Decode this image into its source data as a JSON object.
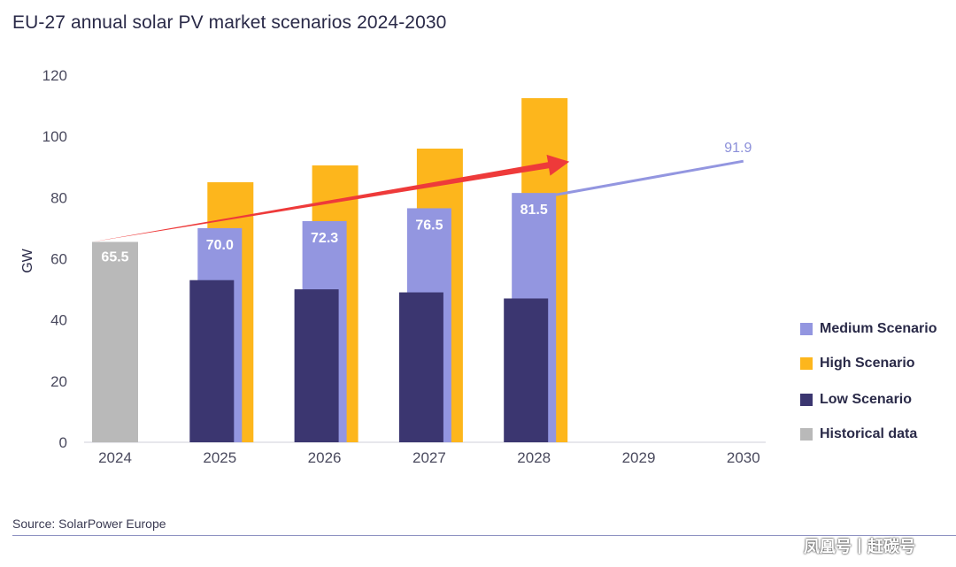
{
  "title": "EU-27 annual solar PV market scenarios 2024-2030",
  "source": "Source: SolarPower Europe",
  "watermark": "凤凰号丨赶碳号",
  "colors": {
    "medium": "#9396e0",
    "high": "#fdb61c",
    "low": "#3b3670",
    "historical": "#b9b9b9",
    "arrow": "#ee3a3a",
    "trend": "#9396e0"
  },
  "legend": [
    {
      "label": "Medium Scenario",
      "color": "#9396e0"
    },
    {
      "label": "High Scenario",
      "color": "#fdb61c"
    },
    {
      "label": "Low Scenario",
      "color": "#3b3670"
    },
    {
      "label": "Historical data",
      "color": "#b9b9b9"
    }
  ],
  "chart_data": {
    "type": "bar",
    "ylabel": "GW",
    "ylim": [
      0,
      120
    ],
    "yticks": [
      0,
      20,
      40,
      60,
      80,
      100,
      120
    ],
    "categories": [
      "2024",
      "2025",
      "2026",
      "2027",
      "2028",
      "2029",
      "2030"
    ],
    "series": [
      {
        "name": "Historical data",
        "values": [
          65.5,
          null,
          null,
          null,
          null,
          null,
          null
        ]
      },
      {
        "name": "Low Scenario",
        "values": [
          null,
          53,
          50,
          49,
          47,
          null,
          null
        ]
      },
      {
        "name": "Medium Scenario",
        "values": [
          null,
          70.0,
          72.3,
          76.5,
          81.5,
          null,
          null
        ]
      },
      {
        "name": "High Scenario",
        "values": [
          null,
          85,
          90.5,
          96,
          112.5,
          null,
          null
        ]
      }
    ],
    "data_labels": {
      "Historical data": [
        "65.5"
      ],
      "Medium Scenario": [
        "70.0",
        "72.3",
        "76.5",
        "81.5"
      ]
    },
    "trend_line": {
      "from": {
        "x": "2028",
        "y": 81.5
      },
      "to": {
        "x": "2030",
        "y": 91.9
      },
      "label": "91.9"
    },
    "arrow": {
      "from": {
        "x": "2024",
        "y": 65.5
      },
      "to": {
        "x": "2028",
        "y": 90
      }
    }
  }
}
